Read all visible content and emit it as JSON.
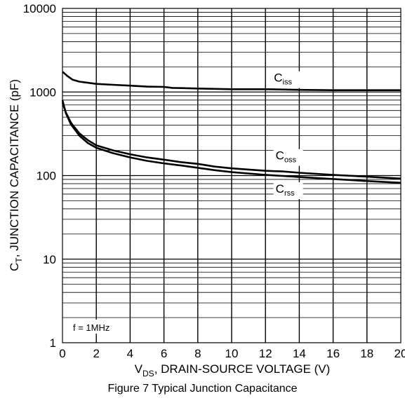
{
  "chart_data": {
    "type": "line",
    "caption": "Figure 7 Typical Junction Capacitance",
    "xlabel": {
      "main": "V",
      "sub": "DS",
      "rest": ", DRAIN-SOURCE VOLTAGE (V)"
    },
    "ylabel": {
      "main": "C",
      "sub": "T",
      "rest": ", JUNCTION CAPACITANCE (pF)"
    },
    "xlim": [
      0,
      20
    ],
    "ylim": [
      1,
      10000
    ],
    "yscale": "log",
    "grid": true,
    "x_ticks": [
      "0",
      "2",
      "4",
      "6",
      "8",
      "10",
      "12",
      "14",
      "16",
      "18",
      "20"
    ],
    "y_ticks": [
      "1",
      "10",
      "100",
      "1000",
      "10000"
    ],
    "annotation": "f = 1MHz",
    "series": [
      {
        "name": "Ciss",
        "label_main": "C",
        "label_sub": "iss",
        "x": [
          0,
          0.3,
          0.6,
          1,
          1.5,
          2,
          3,
          4,
          5,
          6,
          6.5,
          8,
          10,
          12,
          14,
          16,
          18,
          20
        ],
        "y": [
          1750,
          1550,
          1400,
          1330,
          1290,
          1250,
          1220,
          1190,
          1160,
          1150,
          1120,
          1100,
          1080,
          1080,
          1060,
          1050,
          1050,
          1050
        ]
      },
      {
        "name": "Coss",
        "label_main": "C",
        "label_sub": "oss",
        "x": [
          0,
          0.2,
          0.5,
          1,
          1.5,
          2,
          3,
          4,
          5,
          6,
          7,
          8,
          9,
          10,
          11,
          12,
          13,
          14,
          16,
          18,
          20
        ],
        "y": [
          750,
          570,
          430,
          320,
          265,
          230,
          200,
          180,
          165,
          155,
          145,
          138,
          128,
          122,
          118,
          114,
          112,
          108,
          102,
          97,
          92
        ]
      },
      {
        "name": "Crss",
        "label_main": "C",
        "label_sub": "rss",
        "x": [
          0,
          0.2,
          0.5,
          1,
          1.5,
          2,
          3,
          4,
          5,
          6,
          7,
          8,
          9,
          10,
          11,
          12,
          13,
          14,
          16,
          18,
          20
        ],
        "y": [
          800,
          560,
          410,
          300,
          245,
          215,
          185,
          165,
          150,
          140,
          132,
          124,
          116,
          110,
          106,
          102,
          99,
          96,
          91,
          86,
          82
        ]
      }
    ]
  }
}
